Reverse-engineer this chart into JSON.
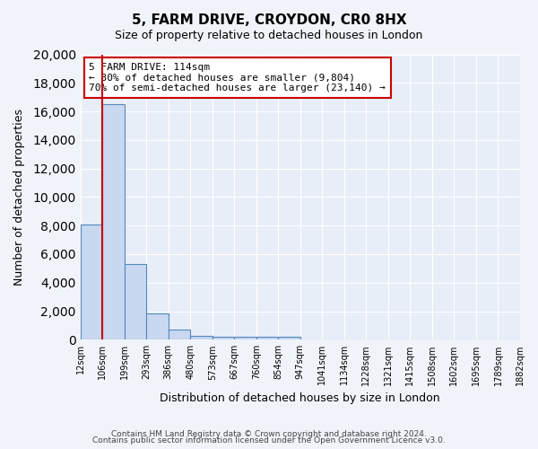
{
  "title_line1": "5, FARM DRIVE, CROYDON, CR0 8HX",
  "title_line2": "Size of property relative to detached houses in London",
  "xlabel": "Distribution of detached houses by size in London",
  "ylabel": "Number of detached properties",
  "bar_values": [
    8100,
    16500,
    5300,
    1850,
    700,
    300,
    230,
    220,
    200,
    180,
    0,
    0,
    0,
    0,
    0,
    0,
    0,
    0,
    0,
    0
  ],
  "bin_labels": [
    "12sqm",
    "106sqm",
    "199sqm",
    "293sqm",
    "386sqm",
    "480sqm",
    "573sqm",
    "667sqm",
    "760sqm",
    "854sqm",
    "947sqm",
    "1041sqm",
    "1134sqm",
    "1228sqm",
    "1321sqm",
    "1415sqm",
    "1508sqm",
    "1602sqm",
    "1695sqm",
    "1789sqm",
    "1882sqm"
  ],
  "bar_color": "#c8d8f0",
  "bar_edge_color": "#5588bb",
  "background_color": "#e8eef8",
  "grid_color": "#ffffff",
  "vline_x": 1,
  "vline_color": "#cc0000",
  "annotation_text": "5 FARM DRIVE: 114sqm\n← 30% of detached houses are smaller (9,804)\n70% of semi-detached houses are larger (23,140) →",
  "annotation_box_color": "#ffffff",
  "annotation_box_edgecolor": "#cc0000",
  "ylim": [
    0,
    20000
  ],
  "yticks": [
    0,
    2000,
    4000,
    6000,
    8000,
    10000,
    12000,
    14000,
    16000,
    18000,
    20000
  ],
  "footer_line1": "Contains HM Land Registry data © Crown copyright and database right 2024.",
  "footer_line2": "Contains public sector information licensed under the Open Government Licence v3.0."
}
